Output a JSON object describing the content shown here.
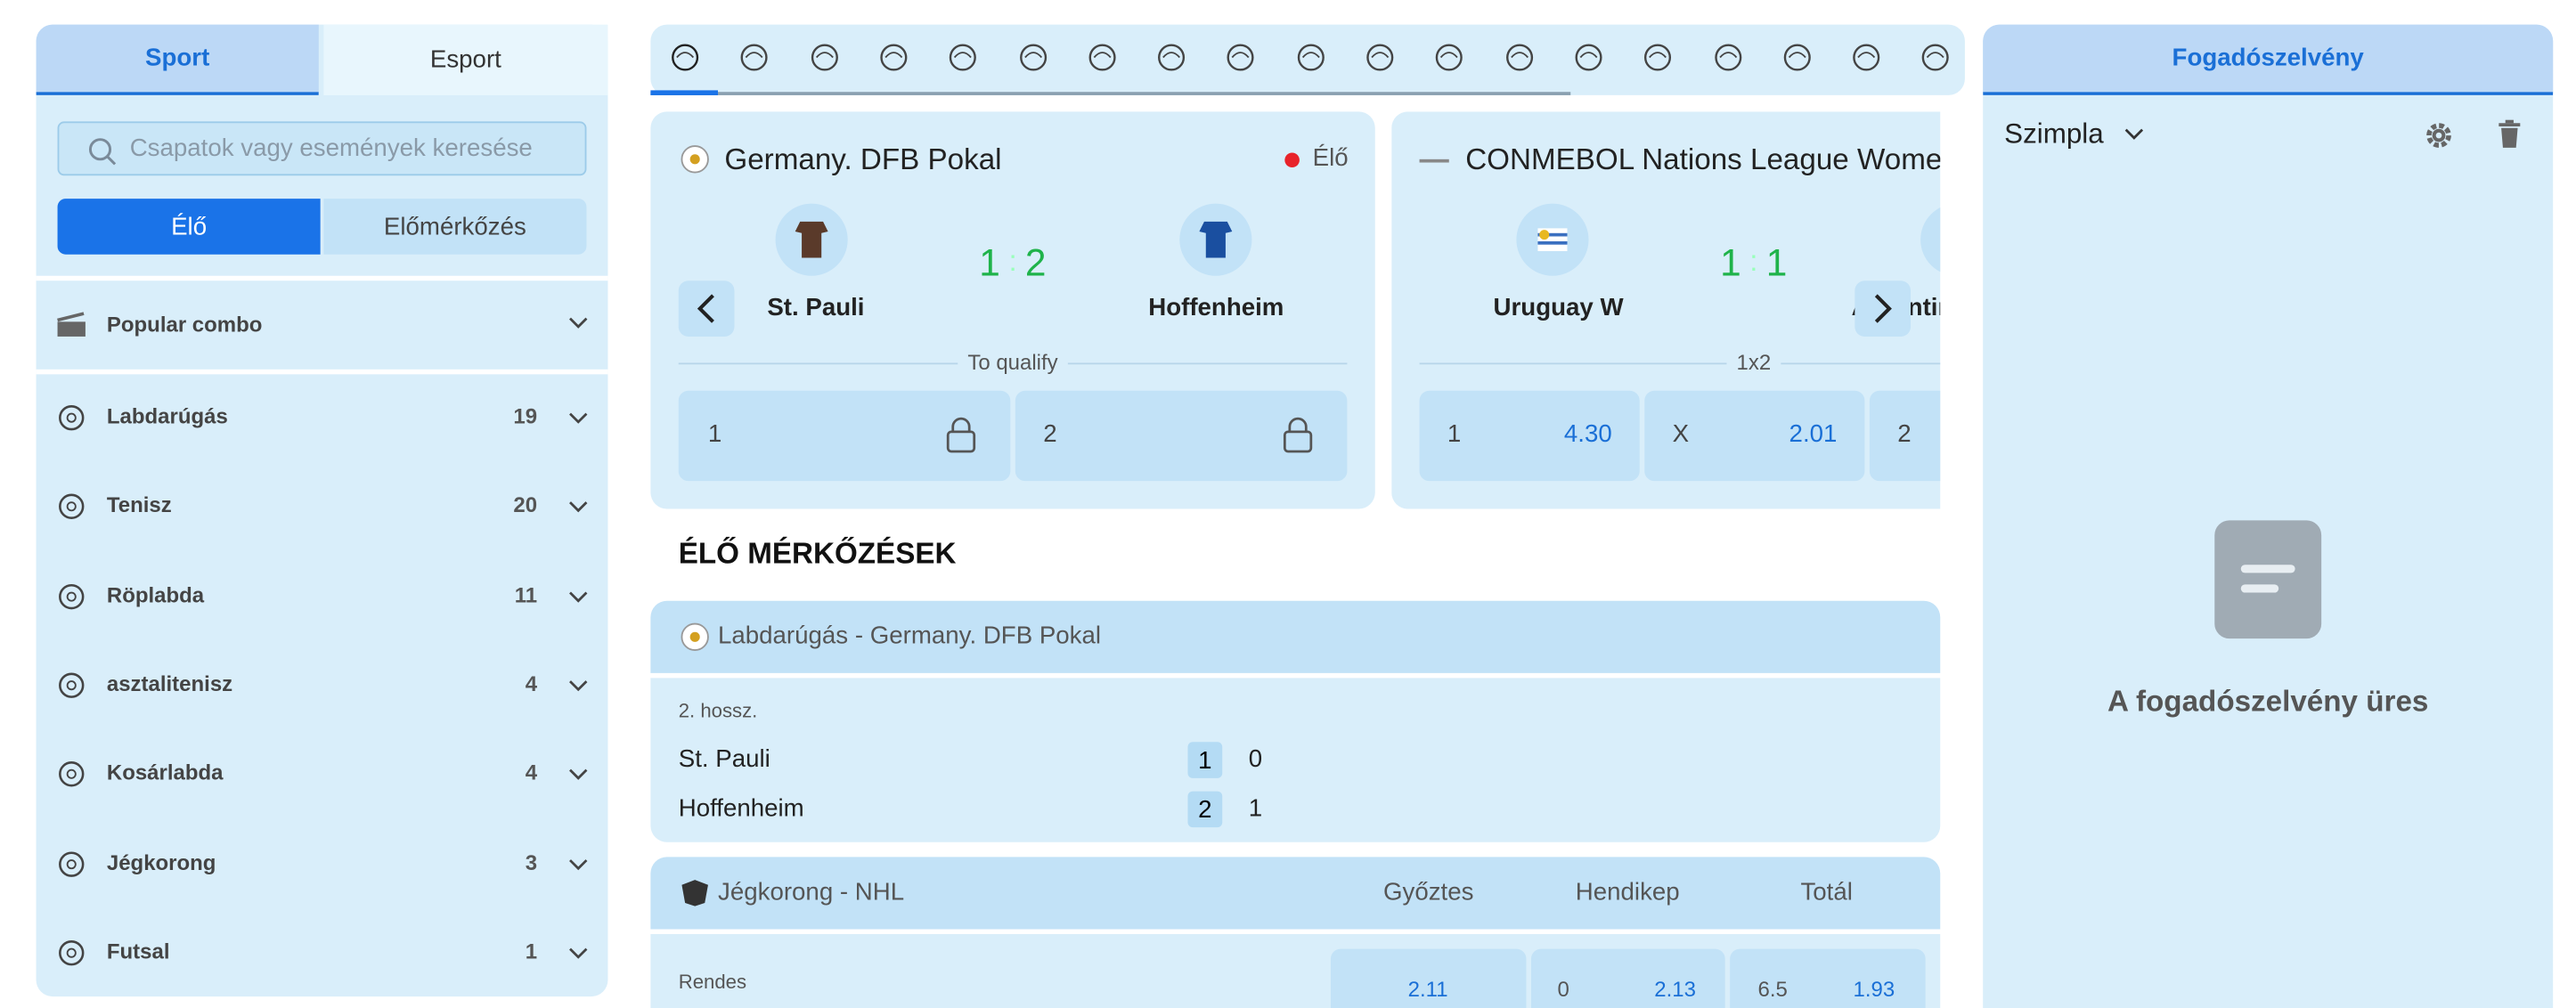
{
  "sidebar": {
    "tabs": [
      "Sport",
      "Esport"
    ],
    "search_placeholder": "Csapatok vagy események keresése",
    "modes": [
      "Élő",
      "Előmérkőzés"
    ],
    "popular": "Popular combo",
    "sports": [
      {
        "name": "Labdarúgás",
        "count": 19
      },
      {
        "name": "Tenisz",
        "count": 20
      },
      {
        "name": "Röplabda",
        "count": 11
      },
      {
        "name": "asztalitenisz",
        "count": 4
      },
      {
        "name": "Kosárlabda",
        "count": 4
      },
      {
        "name": "Jégkorong",
        "count": 3
      },
      {
        "name": "Futsal",
        "count": 1
      }
    ]
  },
  "featured": [
    {
      "league": "Germany. DFB Pokal",
      "live": "Élő",
      "home": "St. Pauli",
      "away": "Hoffenheim",
      "score_home": 1,
      "score_away": 2,
      "market": "To qualify",
      "odds": [
        {
          "label": "1"
        },
        {
          "label": "2"
        }
      ]
    },
    {
      "league": "CONMEBOL Nations League Women",
      "home": "Uruguay W",
      "away": "Argentina W",
      "score_home": 1,
      "score_away": 1,
      "market": "1x2",
      "odds": [
        {
          "label": "1",
          "value": "4.30"
        },
        {
          "label": "X",
          "value": "2.01"
        },
        {
          "label": "2"
        }
      ]
    }
  ],
  "live_title": "ÉLŐ MÉRKŐZÉSEK",
  "events": [
    {
      "header": "Labdarúgás - Germany. DFB Pokal",
      "period": "2. hossz.",
      "teams": [
        {
          "name": "St. Pauli",
          "period_score": 1,
          "score": 0
        },
        {
          "name": "Hoffenheim",
          "period_score": 2,
          "score": 1
        }
      ]
    },
    {
      "header": "Jégkorong - NHL",
      "columns": [
        "Győztes",
        "Hendikep",
        "Totál"
      ],
      "row_label": "Rendes",
      "odds": [
        "2.11",
        "0",
        "2.13",
        "6.5",
        "1.93"
      ]
    }
  ],
  "betslip": {
    "title": "Fogadószelvény",
    "mode": "Szimpla",
    "empty": "A fogadószelvény üres"
  }
}
